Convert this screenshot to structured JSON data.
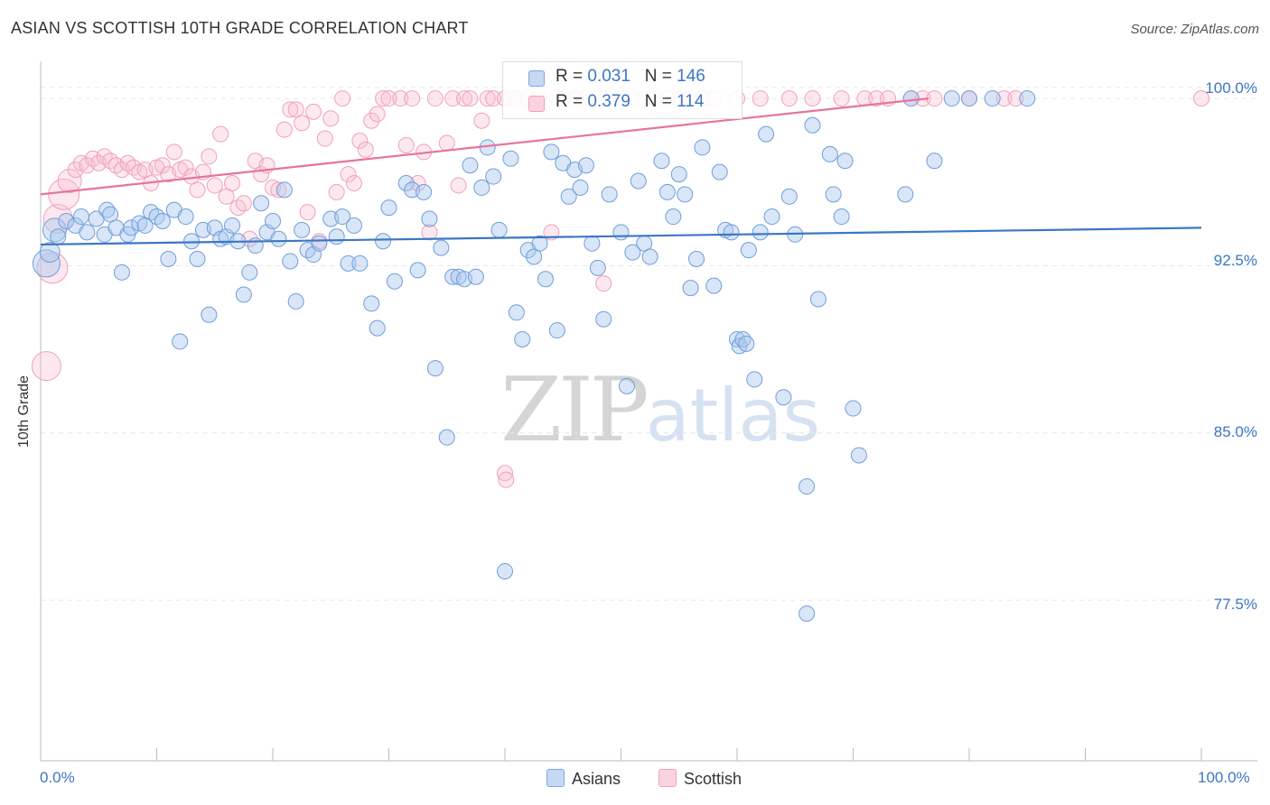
{
  "header": {
    "title": "ASIAN VS SCOTTISH 10TH GRADE CORRELATION CHART",
    "source": "Source: ZipAtlas.com"
  },
  "watermark": {
    "zip": "ZIP",
    "atlas": "atlas"
  },
  "legend": {
    "asians": {
      "r_label": "R = ",
      "r_value": "0.031",
      "n_label": "N = ",
      "n_value": "146"
    },
    "scottish": {
      "r_label": "R = ",
      "r_value": "0.379",
      "n_label": "N = ",
      "n_value": "114"
    }
  },
  "bottom_legend": [
    "Asians",
    "Scottish"
  ],
  "colors": {
    "asians": "#7ea8e0",
    "asians_line": "#3b77c4",
    "scottish": "#f0a0bb",
    "scottish_line": "#e8739a",
    "tick_text": "#3b77c4"
  },
  "chart_data": {
    "type": "scatter",
    "title": "ASIAN VS SCOTTISH 10TH GRADE CORRELATION CHART",
    "xlabel": "",
    "ylabel": "10th Grade",
    "xlim": [
      0,
      100
    ],
    "ylim": [
      70.3,
      101.5
    ],
    "x_tick_labels": [
      "0.0%",
      "100.0%"
    ],
    "y_ticks": [
      77.5,
      85.0,
      92.5,
      100.0
    ],
    "y_tick_labels": [
      "77.5%",
      "85.0%",
      "92.5%",
      "100.0%"
    ],
    "grid": true,
    "series": [
      {
        "name": "Asians",
        "trend": [
          [
            0,
            93.45
          ],
          [
            100,
            94.2
          ]
        ],
        "points": [
          [
            0.5,
            92.6
          ],
          [
            0.8,
            93.1
          ],
          [
            1.2,
            94.1
          ],
          [
            1.5,
            93.8
          ],
          [
            2.2,
            94.5
          ],
          [
            3.0,
            94.3
          ],
          [
            3.5,
            94.7
          ],
          [
            4.0,
            94.0
          ],
          [
            4.8,
            94.6
          ],
          [
            5.5,
            93.9
          ],
          [
            5.7,
            95.0
          ],
          [
            6.0,
            94.8
          ],
          [
            6.5,
            94.2
          ],
          [
            7.0,
            92.2
          ],
          [
            7.5,
            93.9
          ],
          [
            7.8,
            94.2
          ],
          [
            8.5,
            94.4
          ],
          [
            9.0,
            94.3
          ],
          [
            9.5,
            94.9
          ],
          [
            10.0,
            94.7
          ],
          [
            10.5,
            94.5
          ],
          [
            11.0,
            92.8
          ],
          [
            11.5,
            95.0
          ],
          [
            12.0,
            89.1
          ],
          [
            12.5,
            94.7
          ],
          [
            13.0,
            93.6
          ],
          [
            13.5,
            92.8
          ],
          [
            14.0,
            94.1
          ],
          [
            14.5,
            90.3
          ],
          [
            15.0,
            94.2
          ],
          [
            15.5,
            93.7
          ],
          [
            16.0,
            93.8
          ],
          [
            16.5,
            94.3
          ],
          [
            17.0,
            93.6
          ],
          [
            17.5,
            91.2
          ],
          [
            18.0,
            92.2
          ],
          [
            18.5,
            93.4
          ],
          [
            19.0,
            95.3
          ],
          [
            19.5,
            94.0
          ],
          [
            20.0,
            94.5
          ],
          [
            20.5,
            93.7
          ],
          [
            21.0,
            95.9
          ],
          [
            21.5,
            92.7
          ],
          [
            22.0,
            90.9
          ],
          [
            22.5,
            94.1
          ],
          [
            23.0,
            93.2
          ],
          [
            23.5,
            93.0
          ],
          [
            24.0,
            93.5
          ],
          [
            25.0,
            94.6
          ],
          [
            25.5,
            93.8
          ],
          [
            26.0,
            94.7
          ],
          [
            26.5,
            92.6
          ],
          [
            27.0,
            94.3
          ],
          [
            27.5,
            92.6
          ],
          [
            28.5,
            90.8
          ],
          [
            29.0,
            89.7
          ],
          [
            29.5,
            93.6
          ],
          [
            30.0,
            95.1
          ],
          [
            30.5,
            91.8
          ],
          [
            31.5,
            96.2
          ],
          [
            32.0,
            95.9
          ],
          [
            32.5,
            92.3
          ],
          [
            33.0,
            95.8
          ],
          [
            33.5,
            94.6
          ],
          [
            34.0,
            87.9
          ],
          [
            34.5,
            93.3
          ],
          [
            35.0,
            84.8
          ],
          [
            35.5,
            92.0
          ],
          [
            36.0,
            92.0
          ],
          [
            36.5,
            91.9
          ],
          [
            37.0,
            97.0
          ],
          [
            37.5,
            92.0
          ],
          [
            38.0,
            96.0
          ],
          [
            38.5,
            97.8
          ],
          [
            39.0,
            96.5
          ],
          [
            39.5,
            94.1
          ],
          [
            40.0,
            78.8
          ],
          [
            40.5,
            97.3
          ],
          [
            41.0,
            90.4
          ],
          [
            41.5,
            89.2
          ],
          [
            42.0,
            93.2
          ],
          [
            42.5,
            92.9
          ],
          [
            43.0,
            93.5
          ],
          [
            43.5,
            91.9
          ],
          [
            44.0,
            97.6
          ],
          [
            44.5,
            89.6
          ],
          [
            45.0,
            97.1
          ],
          [
            45.5,
            95.6
          ],
          [
            46.0,
            96.8
          ],
          [
            46.5,
            96.0
          ],
          [
            47.0,
            97.0
          ],
          [
            47.5,
            93.5
          ],
          [
            48.0,
            92.4
          ],
          [
            48.5,
            90.1
          ],
          [
            49.0,
            95.7
          ],
          [
            50.0,
            94.0
          ],
          [
            50.5,
            87.1
          ],
          [
            51.0,
            93.1
          ],
          [
            51.5,
            96.3
          ],
          [
            52.0,
            93.5
          ],
          [
            52.5,
            92.9
          ],
          [
            53.5,
            97.2
          ],
          [
            54.0,
            95.8
          ],
          [
            54.5,
            94.7
          ],
          [
            55.0,
            96.6
          ],
          [
            55.5,
            95.7
          ],
          [
            56.0,
            91.5
          ],
          [
            56.5,
            92.8
          ],
          [
            57.0,
            97.8
          ],
          [
            58.0,
            91.6
          ],
          [
            58.5,
            96.7
          ],
          [
            59.0,
            94.1
          ],
          [
            60.0,
            89.2
          ],
          [
            60.2,
            88.9
          ],
          [
            60.5,
            89.2
          ],
          [
            60.8,
            89.0
          ],
          [
            61.0,
            93.2
          ],
          [
            61.5,
            87.4
          ],
          [
            62.0,
            94.0
          ],
          [
            62.5,
            98.4
          ],
          [
            63.0,
            94.7
          ],
          [
            64.0,
            86.6
          ],
          [
            64.5,
            95.6
          ],
          [
            65.0,
            93.9
          ],
          [
            66.0,
            82.6
          ],
          [
            66.5,
            98.8
          ],
          [
            67.0,
            91.0
          ],
          [
            68.0,
            97.5
          ],
          [
            68.3,
            95.7
          ],
          [
            69.0,
            94.7
          ],
          [
            69.3,
            97.2
          ],
          [
            70.0,
            86.1
          ],
          [
            70.5,
            84.0
          ],
          [
            74.5,
            95.7
          ],
          [
            75.0,
            100.0
          ],
          [
            77.0,
            97.2
          ],
          [
            78.5,
            100.0
          ],
          [
            80.0,
            100.0
          ],
          [
            82.0,
            100.0
          ],
          [
            85.0,
            100.0
          ],
          [
            66.0,
            76.9
          ],
          [
            59.5,
            94.0
          ]
        ]
      },
      {
        "name": "Scottish",
        "trend": [
          [
            0,
            95.7
          ],
          [
            76.5,
            100.0
          ]
        ],
        "points": [
          [
            0.5,
            88.0
          ],
          [
            1.0,
            92.4
          ],
          [
            1.5,
            94.6
          ],
          [
            2.0,
            95.7
          ],
          [
            2.5,
            96.3
          ],
          [
            3.0,
            96.8
          ],
          [
            3.5,
            97.1
          ],
          [
            4.0,
            97.0
          ],
          [
            4.5,
            97.3
          ],
          [
            5.0,
            97.1
          ],
          [
            5.5,
            97.4
          ],
          [
            6.0,
            97.2
          ],
          [
            6.5,
            97.0
          ],
          [
            7.0,
            96.8
          ],
          [
            7.5,
            97.1
          ],
          [
            8.0,
            96.9
          ],
          [
            8.5,
            96.7
          ],
          [
            9.0,
            96.8
          ],
          [
            9.5,
            96.2
          ],
          [
            10.0,
            96.9
          ],
          [
            10.5,
            97.0
          ],
          [
            11.0,
            96.6
          ],
          [
            11.5,
            97.6
          ],
          [
            12.0,
            96.8
          ],
          [
            12.5,
            96.9
          ],
          [
            13.0,
            96.5
          ],
          [
            13.5,
            95.9
          ],
          [
            14.0,
            96.7
          ],
          [
            14.5,
            97.4
          ],
          [
            15.0,
            96.1
          ],
          [
            15.5,
            98.4
          ],
          [
            16.0,
            95.6
          ],
          [
            16.5,
            96.2
          ],
          [
            17.0,
            95.1
          ],
          [
            17.5,
            95.3
          ],
          [
            18.0,
            93.7
          ],
          [
            18.5,
            97.2
          ],
          [
            19.0,
            96.6
          ],
          [
            19.5,
            97.0
          ],
          [
            20.0,
            96.0
          ],
          [
            20.5,
            95.9
          ],
          [
            21.0,
            98.6
          ],
          [
            21.5,
            99.5
          ],
          [
            22.0,
            99.5
          ],
          [
            22.5,
            98.9
          ],
          [
            23.0,
            94.9
          ],
          [
            23.5,
            99.4
          ],
          [
            24.0,
            93.6
          ],
          [
            24.5,
            98.2
          ],
          [
            25.0,
            99.1
          ],
          [
            25.5,
            95.8
          ],
          [
            26.0,
            100.0
          ],
          [
            26.5,
            96.6
          ],
          [
            27.0,
            96.2
          ],
          [
            27.5,
            98.1
          ],
          [
            28.0,
            97.7
          ],
          [
            28.5,
            99.0
          ],
          [
            29.0,
            99.3
          ],
          [
            29.5,
            100.0
          ],
          [
            30.0,
            100.0
          ],
          [
            31.0,
            100.0
          ],
          [
            31.5,
            97.9
          ],
          [
            32.0,
            100.0
          ],
          [
            32.5,
            96.2
          ],
          [
            33.0,
            97.6
          ],
          [
            33.5,
            94.0
          ],
          [
            34.0,
            100.0
          ],
          [
            35.0,
            98.0
          ],
          [
            35.5,
            100.0
          ],
          [
            36.0,
            96.1
          ],
          [
            36.5,
            100.0
          ],
          [
            37.0,
            100.0
          ],
          [
            38.0,
            99.0
          ],
          [
            38.5,
            100.0
          ],
          [
            39.0,
            100.0
          ],
          [
            40.0,
            100.0
          ],
          [
            40.5,
            100.0
          ],
          [
            41.0,
            100.0
          ],
          [
            42.0,
            100.0
          ],
          [
            43.0,
            100.0
          ],
          [
            44.0,
            94.0
          ],
          [
            44.5,
            100.0
          ],
          [
            45.0,
            100.0
          ],
          [
            46.0,
            100.0
          ],
          [
            47.0,
            100.0
          ],
          [
            48.0,
            100.0
          ],
          [
            48.5,
            91.7
          ],
          [
            49.0,
            100.0
          ],
          [
            50.0,
            100.0
          ],
          [
            51.0,
            100.0
          ],
          [
            52.0,
            100.0
          ],
          [
            53.0,
            100.0
          ],
          [
            54.0,
            100.0
          ],
          [
            55.0,
            100.0
          ],
          [
            56.0,
            100.0
          ],
          [
            57.0,
            100.0
          ],
          [
            58.0,
            100.0
          ],
          [
            60.0,
            100.0
          ],
          [
            62.0,
            100.0
          ],
          [
            64.5,
            100.0
          ],
          [
            66.5,
            100.0
          ],
          [
            69.0,
            100.0
          ],
          [
            71.0,
            100.0
          ],
          [
            72.0,
            100.0
          ],
          [
            73.0,
            100.0
          ],
          [
            75.0,
            100.0
          ],
          [
            76.0,
            100.0
          ],
          [
            77.0,
            100.0
          ],
          [
            80.0,
            100.0
          ],
          [
            83.0,
            100.0
          ],
          [
            84.0,
            100.0
          ],
          [
            100.0,
            100.0
          ],
          [
            40.0,
            83.2
          ],
          [
            40.1,
            82.9
          ]
        ]
      }
    ]
  }
}
